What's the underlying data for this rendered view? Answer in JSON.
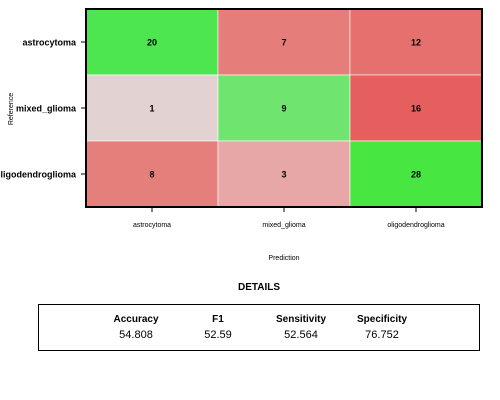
{
  "chart_data": {
    "type": "heatmap",
    "xlabel": "Prediction",
    "ylabel": "Reference",
    "x_categories": [
      "astrocytoma",
      "mixed_glioma",
      "oligodendroglioma"
    ],
    "y_categories": [
      "astrocytoma",
      "mixed_glioma",
      "oligodendroglioma"
    ],
    "values": [
      [
        20,
        7,
        12
      ],
      [
        1,
        9,
        16
      ],
      [
        8,
        3,
        28
      ]
    ],
    "cell_colors": [
      [
        "#4ee650",
        "#e57e7b",
        "#e5706d"
      ],
      [
        "#e3d2d2",
        "#6fe46f",
        "#e55f5e"
      ],
      [
        "#e57f7c",
        "#e7a7a6",
        "#47e641"
      ]
    ],
    "grid_color": "#ffffff",
    "legend": "none"
  },
  "details": {
    "title": "DETAILS",
    "metrics": [
      {
        "label": "Accuracy",
        "value": "54.808"
      },
      {
        "label": "F1",
        "value": "52.59"
      },
      {
        "label": "Sensitivity",
        "value": "52.564"
      },
      {
        "label": "Specificity",
        "value": "76.752"
      }
    ]
  }
}
